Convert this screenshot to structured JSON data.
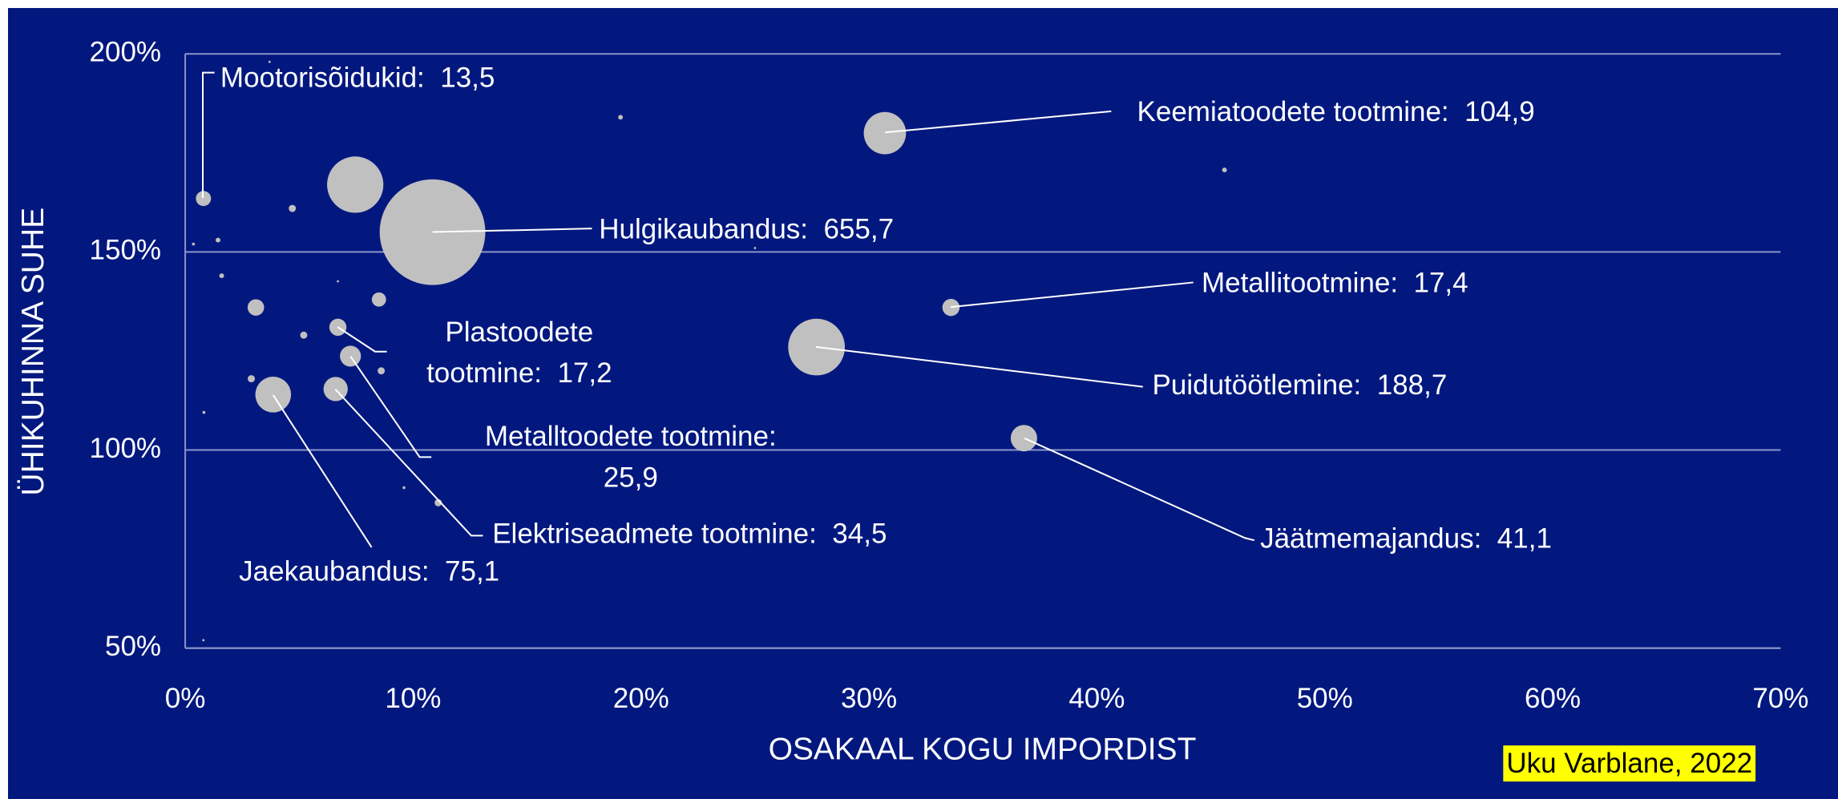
{
  "chart_data": {
    "type": "bubble",
    "x_label": "OSAKAAL KOGU IMPORDIST",
    "y_label": "ÜHIKUHINNA SUHE",
    "credit": "Uku Varblane, 2022",
    "color": "#c0c0c0",
    "xlim": [
      0,
      70
    ],
    "ylim": [
      50,
      200
    ],
    "xticks": [
      {
        "value": 0,
        "label": "0%"
      },
      {
        "value": 10,
        "label": "10%"
      },
      {
        "value": 20,
        "label": "20%"
      },
      {
        "value": 30,
        "label": "30%"
      },
      {
        "value": 40,
        "label": "40%"
      },
      {
        "value": 50,
        "label": "50%"
      },
      {
        "value": 60,
        "label": "60%"
      },
      {
        "value": 70,
        "label": "70%"
      }
    ],
    "yticks": [
      {
        "value": 50,
        "label": "50%"
      },
      {
        "value": 100,
        "label": "100%"
      },
      {
        "value": 150,
        "label": "150%"
      },
      {
        "value": 200,
        "label": "200%"
      }
    ],
    "grid": true,
    "x": [
      0.8,
      30.7,
      10.85,
      33.6,
      6.7,
      27.7,
      7.25,
      6.6,
      3.86,
      36.8,
      7.46,
      3.1,
      8.5,
      4.7,
      5.2,
      8.6,
      2.9,
      11.1,
      19.1,
      45.6,
      1.44,
      1.6,
      0.36,
      0.82,
      9.6,
      6.7,
      25,
      3.7,
      0.8
    ],
    "values": [
      163.5,
      180,
      155,
      136,
      131,
      126,
      123.7,
      115.4,
      114,
      103,
      167,
      136,
      138,
      161,
      129,
      120,
      118,
      86.7,
      184,
      170.7,
      153,
      144,
      152,
      109.5,
      90.5,
      142.6,
      151,
      198,
      52
    ],
    "sizes": [
      13.5,
      104.9,
      655.7,
      17.4,
      17.2,
      188.7,
      25.9,
      34.5,
      75.1,
      41.1,
      186,
      16,
      12,
      3,
      3,
      3,
      3,
      3,
      1.3,
      1.3,
      1.3,
      1.3,
      0.5,
      0.5,
      0.5,
      0.3,
      0.3,
      0.3,
      0.3
    ],
    "labels": [
      [
        "Mootorisõidukid:  13,5"
      ],
      [
        "Keemiatoodete tootmine:  104,9"
      ],
      [
        "Hulgikaubandus:  655,7"
      ],
      [
        "Metallitootmine:  17,4"
      ],
      [
        "Plastoodete",
        "tootmine:  17,2"
      ],
      [
        "Puidutöötlemine:  188,7"
      ],
      [
        "Metalltoodete tootmine:",
        "25,9"
      ],
      [
        "Elektriseadmete tootmine:  34,5"
      ],
      [
        "Jaekaubandus:  75,1"
      ],
      [
        "Jäätmemajandus:  41,1"
      ],
      null,
      null,
      null,
      null,
      null,
      null,
      null,
      null,
      null,
      null,
      null,
      null,
      null,
      null,
      null,
      null,
      null,
      null,
      null
    ]
  }
}
